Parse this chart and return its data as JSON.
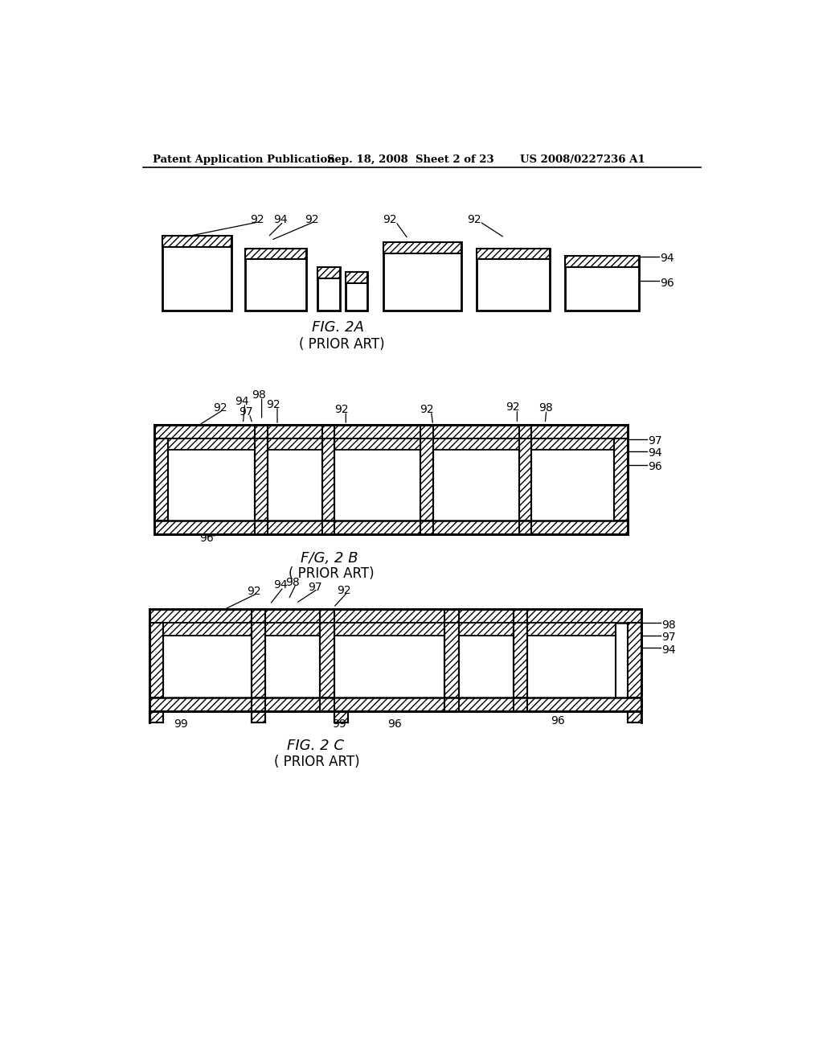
{
  "background_color": "#ffffff",
  "header_left": "Patent Application Publication",
  "header_mid": "Sep. 18, 2008  Sheet 2 of 23",
  "header_right": "US 2008/0227236 A1",
  "line_color": "#000000",
  "text_color": "#000000",
  "fig2a_caption": "FIG. 2A",
  "fig2a_sub": "( PRIOR ART)",
  "fig2b_caption": "F/G, 2 B",
  "fig2b_sub": "( PRIOR ART)",
  "fig2c_caption": "FIG. 2 C",
  "fig2c_sub": "( PRIOR ART)"
}
